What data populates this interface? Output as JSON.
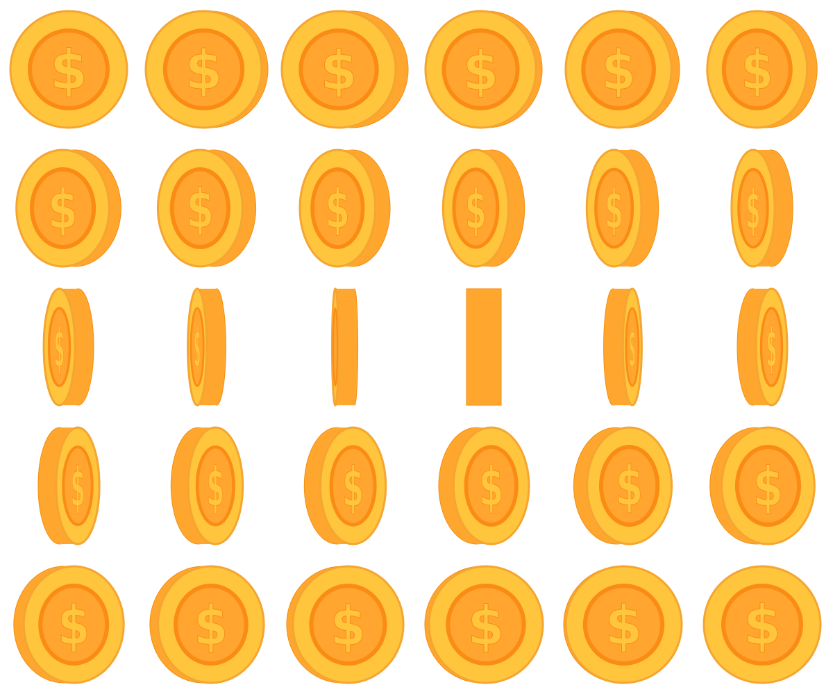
{
  "sprite_sheet": {
    "subject": "spinning-gold-coin",
    "symbol": "$",
    "rows": 5,
    "columns": 6,
    "frames": 30,
    "colors": {
      "face": "#FFC53D",
      "face_outline": "#F5A531",
      "inner_ring": "#FA8C16",
      "inner_disc": "#FFA530",
      "edge": "#FFA62E",
      "edge_shadow": "#F28F12",
      "symbol": "#FFC53D",
      "symbol_highlight": "#FFE58F",
      "background": "#FFFFFF"
    }
  }
}
